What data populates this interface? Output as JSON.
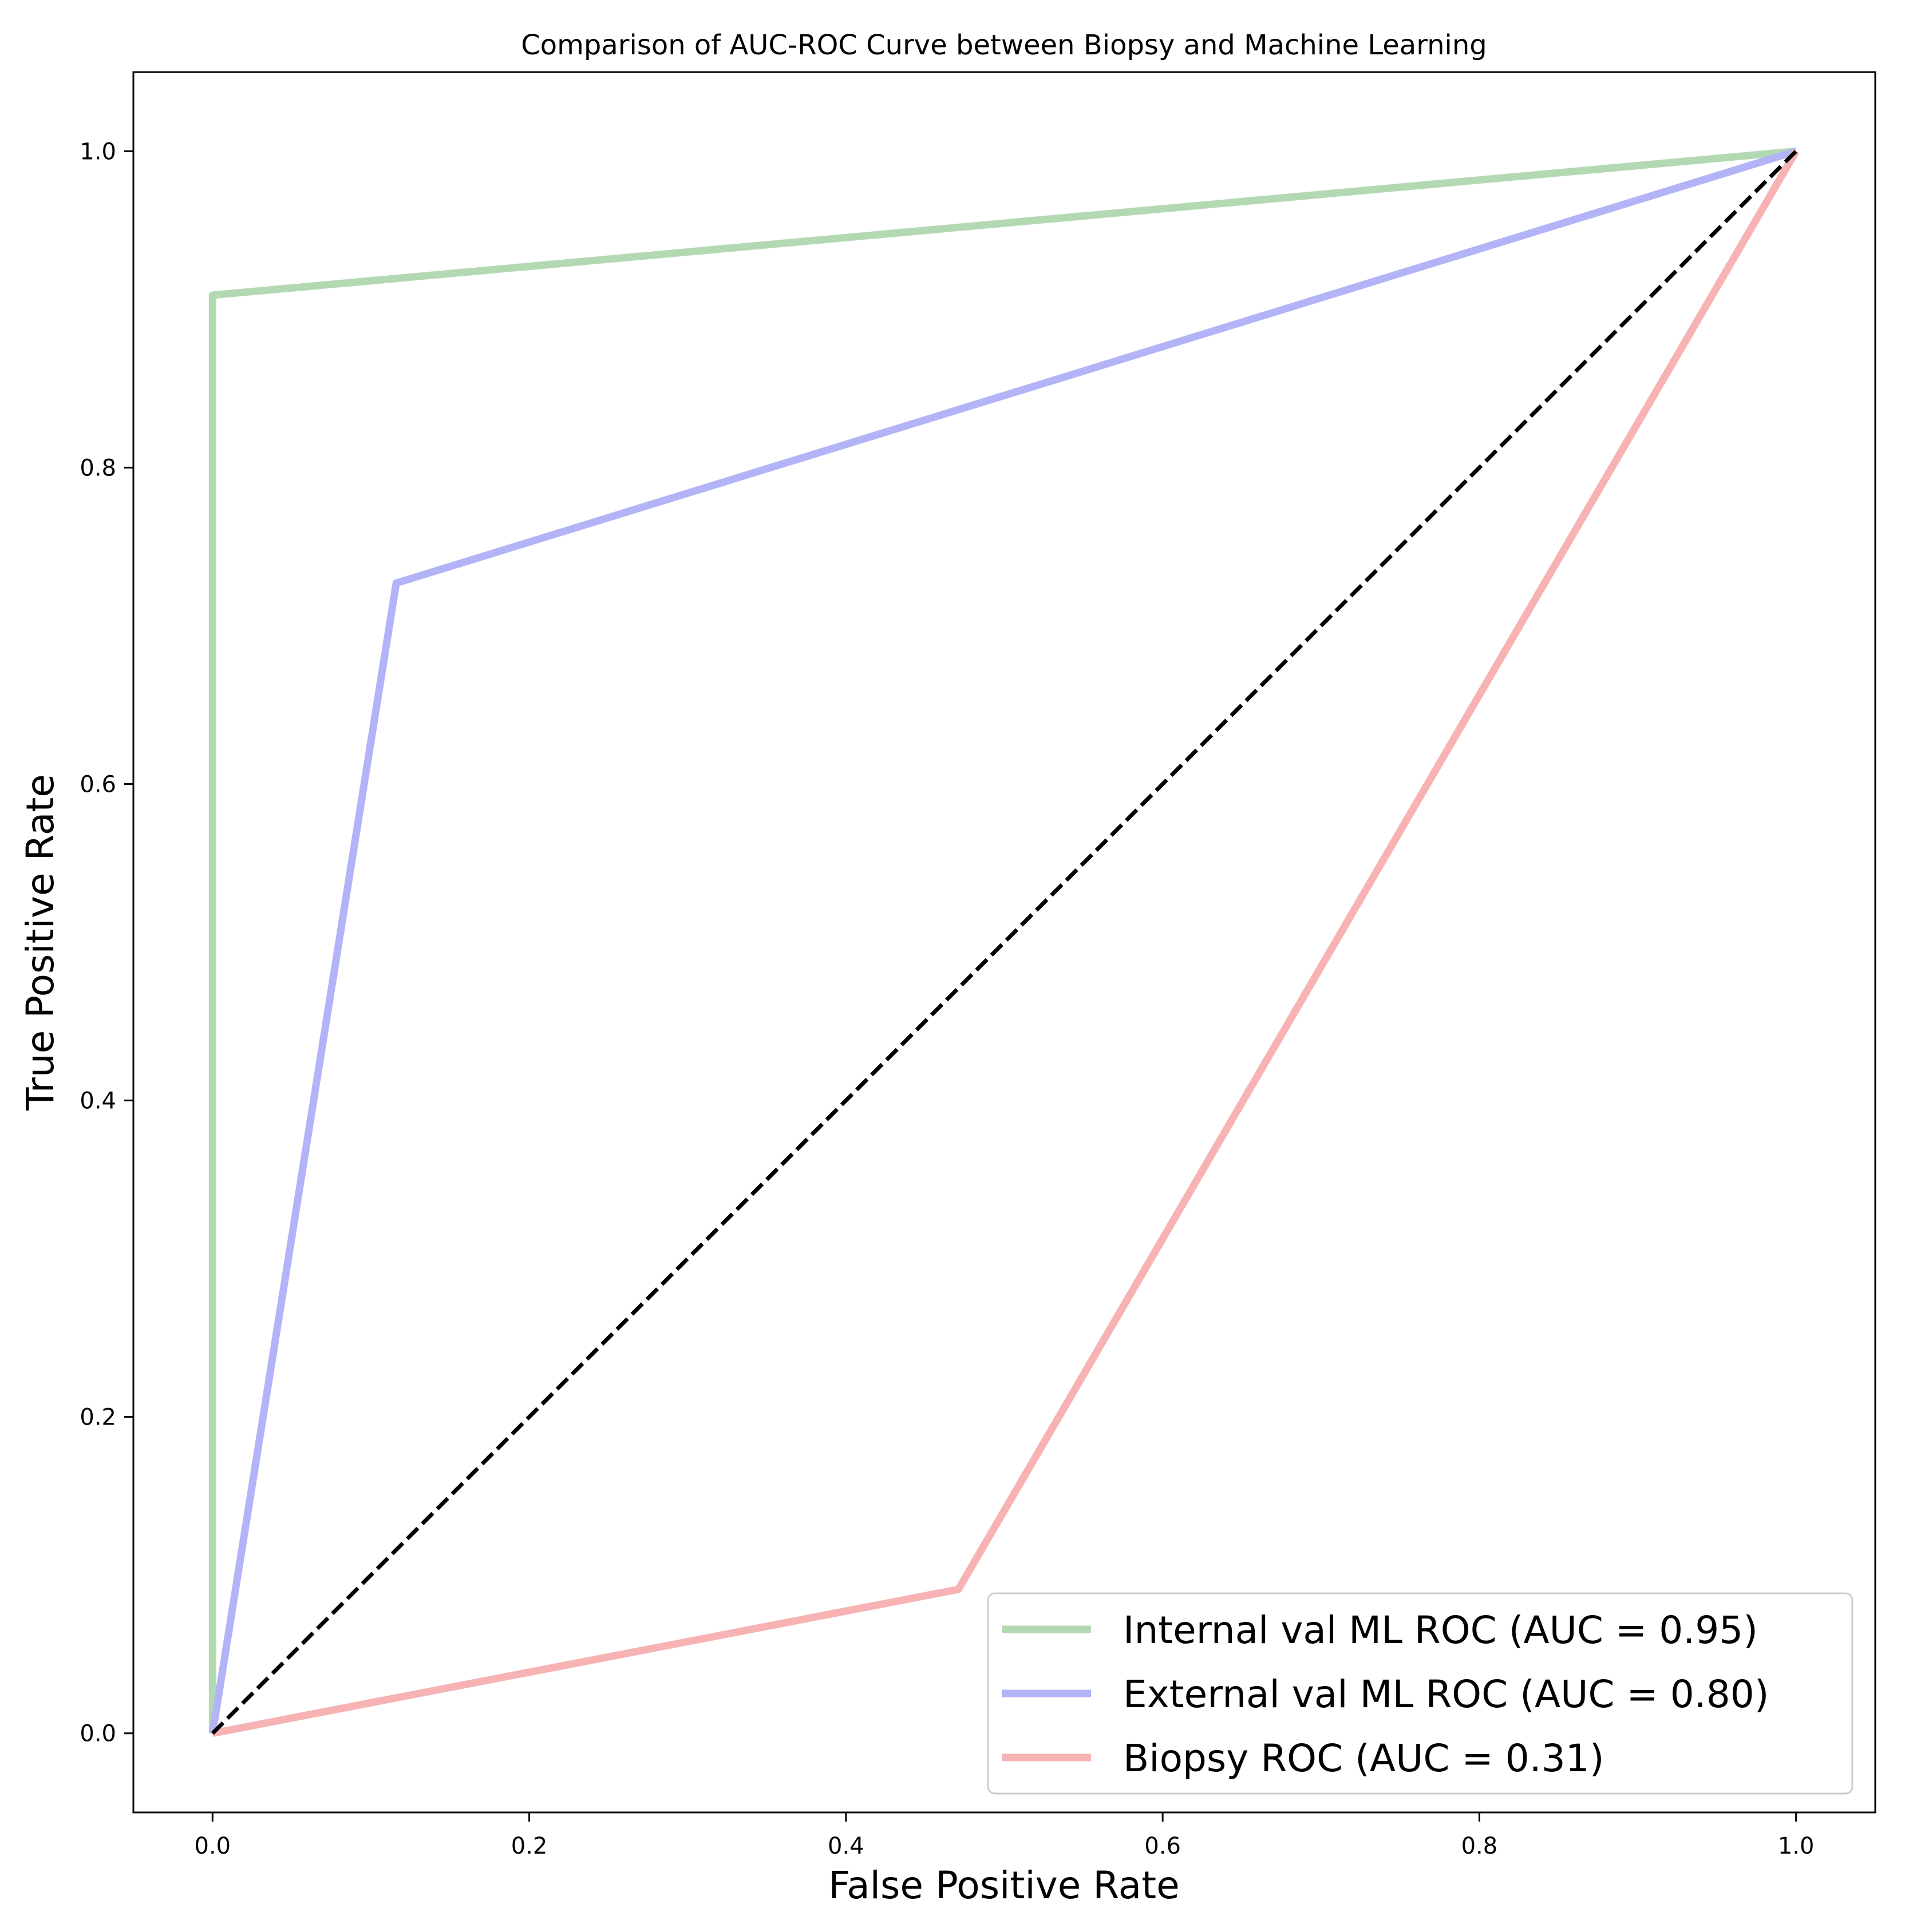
{
  "chart_data": {
    "type": "line",
    "title": "Comparison of AUC-ROC Curve between Biopsy and Machine Learning",
    "xlabel": "False Positive Rate",
    "ylabel": "True Positive Rate",
    "xlim": [
      -0.05,
      1.05
    ],
    "ylim": [
      -0.05,
      1.05
    ],
    "x_ticks": [
      "0.0",
      "0.2",
      "0.4",
      "0.6",
      "0.8",
      "1.0"
    ],
    "y_ticks": [
      "0.0",
      "0.2",
      "0.4",
      "0.6",
      "0.8",
      "1.0"
    ],
    "grid": false,
    "legend_position": "lower-right",
    "series": [
      {
        "name": "Internal val ML ROC (AUC = 0.95)",
        "color": "#b3d9b3",
        "x": [
          0.0,
          0.0,
          1.0
        ],
        "y": [
          0.0,
          0.909,
          1.0
        ]
      },
      {
        "name": "External val ML ROC (AUC = 0.80)",
        "color": "#b3b3f7",
        "x": [
          0.0,
          0.116,
          1.0
        ],
        "y": [
          0.0,
          0.727,
          1.0
        ]
      },
      {
        "name": "Biopsy ROC (AUC = 0.31)",
        "color": "#f7b3b3",
        "x": [
          0.0,
          0.471,
          1.0
        ],
        "y": [
          0.0,
          0.091,
          1.0
        ]
      }
    ],
    "reference_line": {
      "x": [
        0.0,
        1.0
      ],
      "y": [
        0.0,
        1.0
      ],
      "color": "#000000",
      "style": "dashed"
    }
  }
}
